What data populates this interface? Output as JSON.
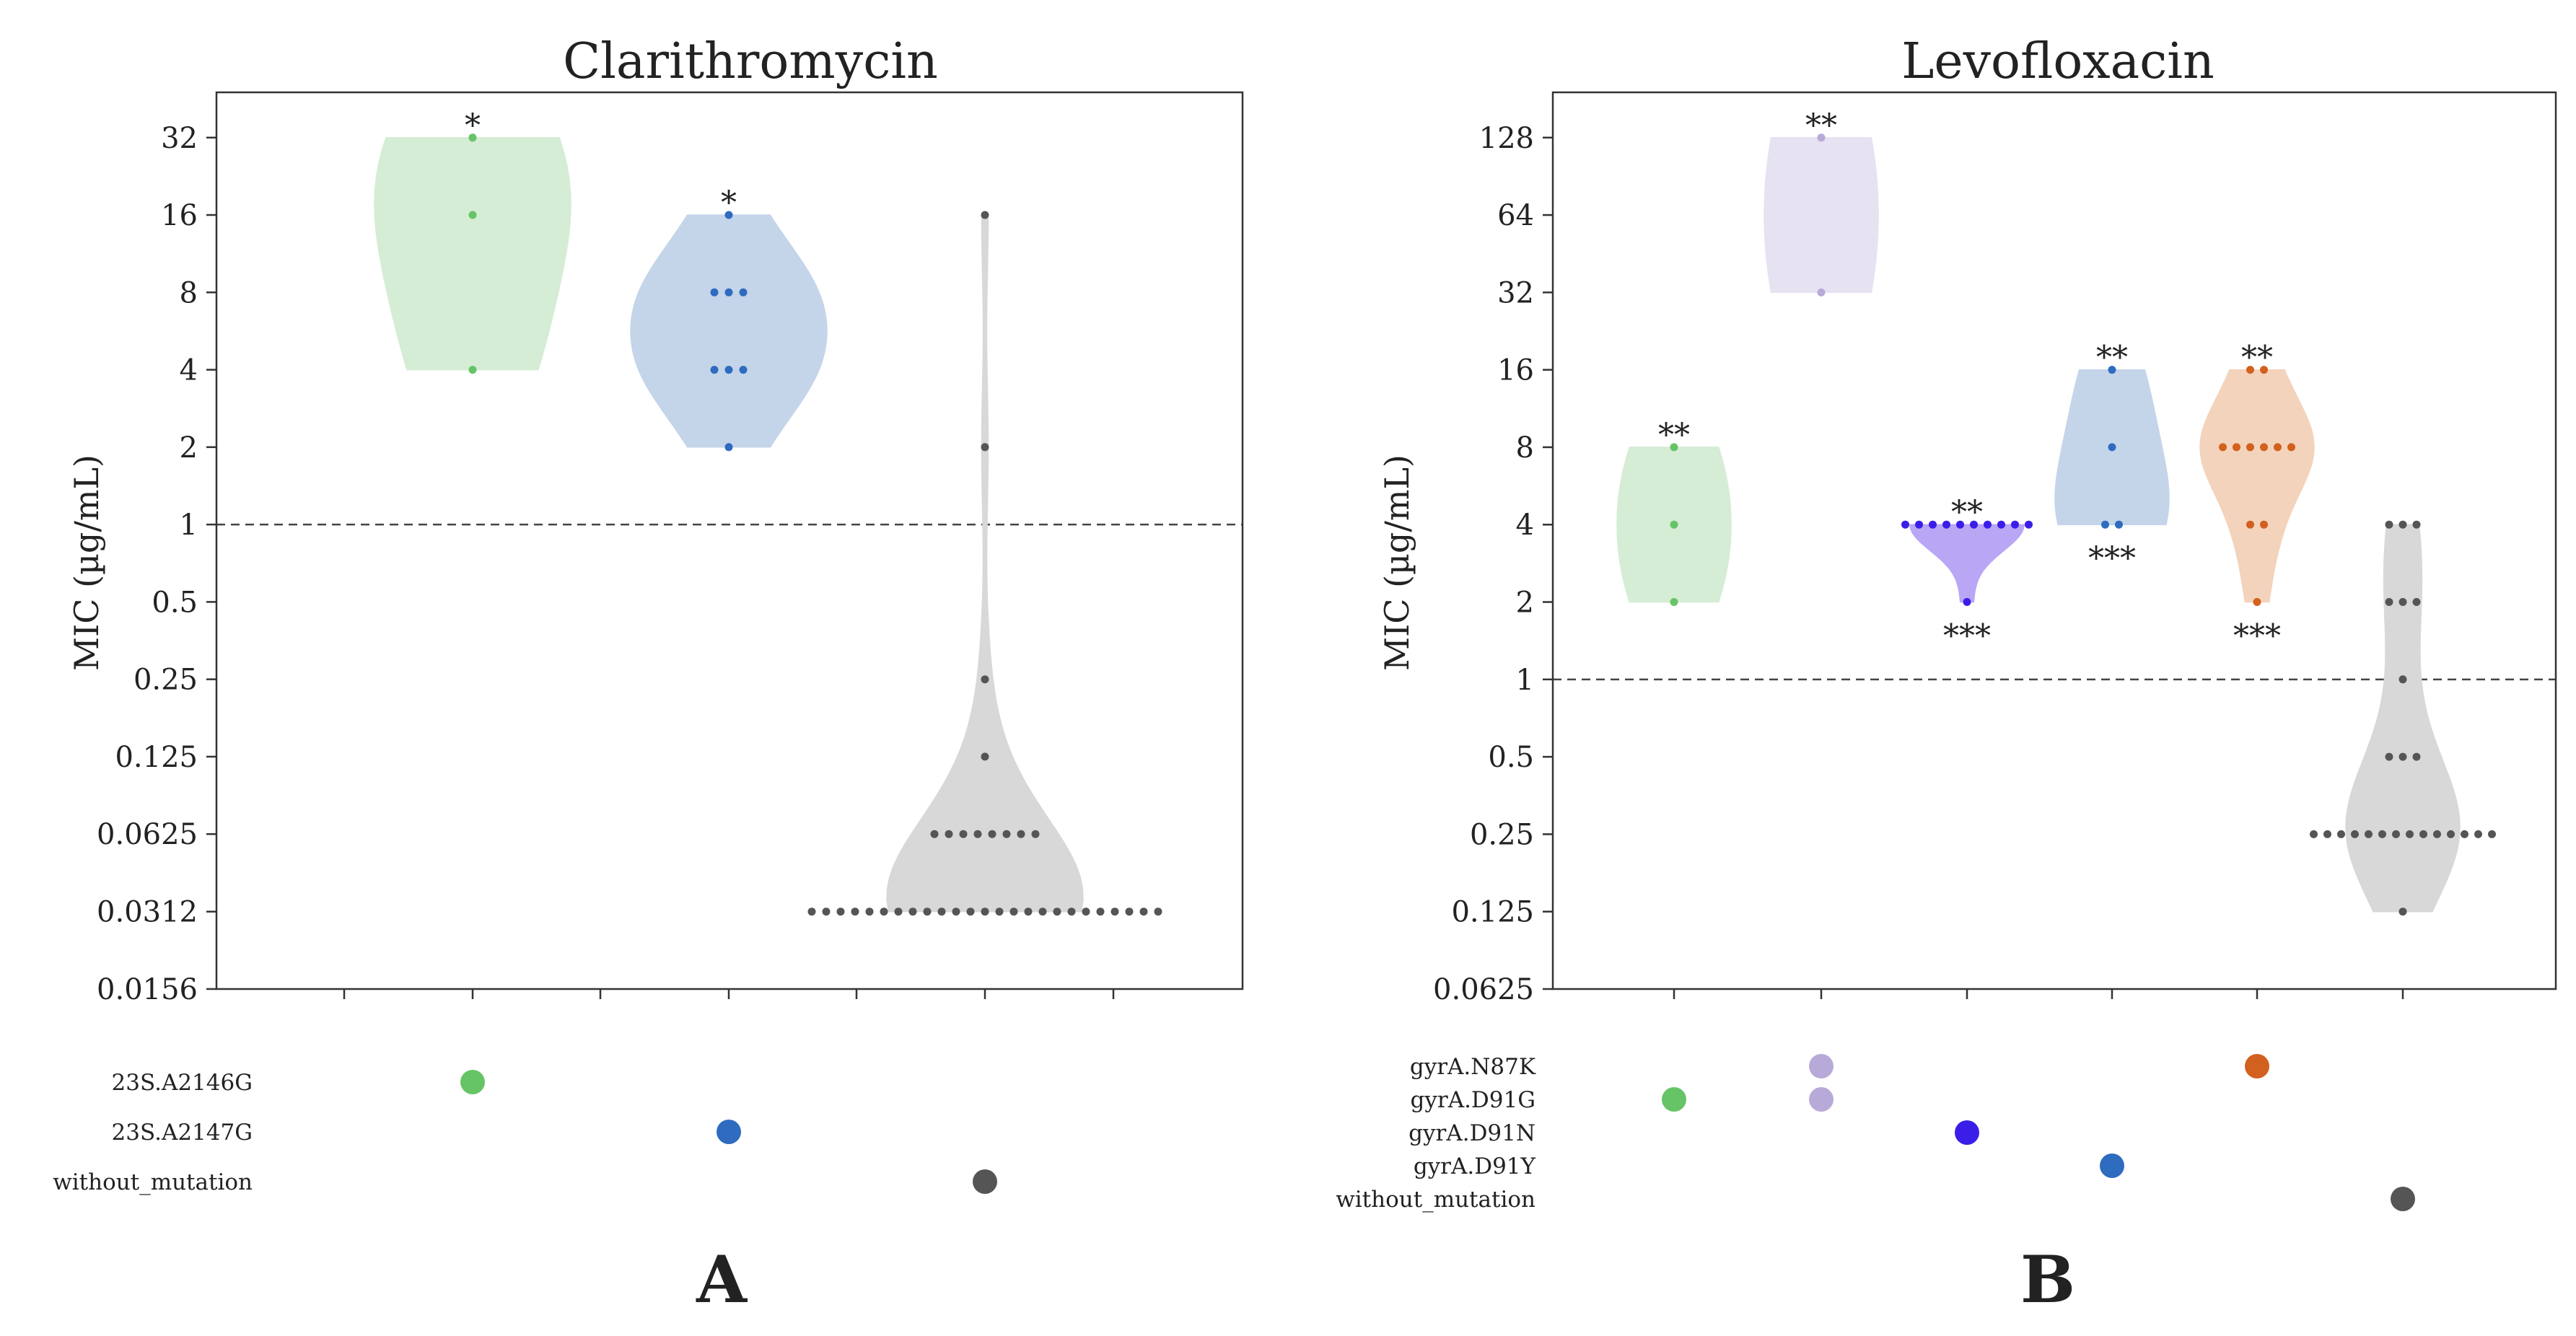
{
  "figure": {
    "panels": [
      {
        "label": "A",
        "title": "Clarithromycin"
      },
      {
        "label": "B",
        "title": "Levofloxacin"
      }
    ]
  },
  "chart_data": [
    {
      "type": "violin",
      "panel": "A",
      "title": "Clarithromycin",
      "ylabel": "MIC (µg/mL)",
      "yscale": "log2",
      "ylim": [
        0.0156,
        48
      ],
      "yticks": [
        0.0156,
        0.0312,
        0.0625,
        0.125,
        0.25,
        0.5,
        1,
        2,
        4,
        8,
        16,
        32
      ],
      "ytick_labels": [
        "0.0156",
        "0.0312",
        "0.0625",
        "0.125",
        "0.25",
        "0.5",
        "1",
        "2",
        "4",
        "8",
        "16",
        "32"
      ],
      "breakpoint": 1,
      "n_categories": 3,
      "mutation_rows": [
        "23S.A2146G",
        "23S.A2147G",
        "without_mutation"
      ],
      "series": [
        {
          "name": "23S.A2146G",
          "color": "#66c466",
          "fill": "#d5ecd5",
          "mutations": [
            "23S.A2146G"
          ],
          "points": [
            4,
            16,
            32
          ],
          "significance": "*",
          "sig_position": "top"
        },
        {
          "name": "23S.A2147G",
          "color": "#2f6bbf",
          "fill": "#c4d5ea",
          "mutations": [
            "23S.A2147G"
          ],
          "points": [
            2,
            4,
            4,
            4,
            8,
            8,
            8,
            16
          ],
          "significance": "*",
          "sig_position": "top"
        },
        {
          "name": "without_mutation",
          "color": "#555555",
          "fill": "#d8d8d8",
          "mutations": [
            "without_mutation"
          ],
          "points": [
            0.0312,
            0.0312,
            0.0312,
            0.0312,
            0.0312,
            0.0312,
            0.0312,
            0.0312,
            0.0312,
            0.0312,
            0.0312,
            0.0312,
            0.0312,
            0.0312,
            0.0312,
            0.0312,
            0.0312,
            0.0312,
            0.0312,
            0.0312,
            0.0312,
            0.0312,
            0.0312,
            0.0312,
            0.0312,
            0.0625,
            0.0625,
            0.0625,
            0.0625,
            0.0625,
            0.0625,
            0.0625,
            0.0625,
            0.125,
            0.25,
            2,
            16
          ],
          "significance": "",
          "sig_position": ""
        }
      ]
    },
    {
      "type": "violin",
      "panel": "B",
      "title": "Levofloxacin",
      "ylabel": "MIC (µg/mL)",
      "yscale": "log2",
      "ylim": [
        0.0625,
        192
      ],
      "yticks": [
        0.0625,
        0.125,
        0.25,
        0.5,
        1,
        2,
        4,
        8,
        16,
        32,
        64,
        128
      ],
      "ytick_labels": [
        "0.0625",
        "0.125",
        "0.25",
        "0.5",
        "1",
        "2",
        "4",
        "8",
        "16",
        "32",
        "64",
        "128"
      ],
      "breakpoint": 1,
      "n_categories": 6,
      "mutation_rows": [
        "gyrA.N87K",
        "gyrA.D91G",
        "gyrA.D91N",
        "gyrA.D91Y",
        "without_mutation"
      ],
      "series": [
        {
          "name": "gyrA.D91G",
          "color": "#66c466",
          "fill": "#d5ecd5",
          "mutations": [
            "gyrA.D91G"
          ],
          "points": [
            2,
            4,
            8
          ],
          "significance": "**",
          "sig_position": "top"
        },
        {
          "name": "gyrA.N87K + gyrA.D91G",
          "color": "#b8aad8",
          "fill": "#e6e2f2",
          "mutations": [
            "gyrA.N87K",
            "gyrA.D91G"
          ],
          "points": [
            32,
            128
          ],
          "significance": "**",
          "sig_position": "top"
        },
        {
          "name": "gyrA.D91N",
          "color": "#3a1ee8",
          "fill": "#b9a6f5",
          "mutations": [
            "gyrA.D91N"
          ],
          "points": [
            2,
            4,
            4,
            4,
            4,
            4,
            4,
            4,
            4,
            4,
            4
          ],
          "significance": "**",
          "sig_position": "top",
          "significance2": "***"
        },
        {
          "name": "gyrA.D91Y",
          "color": "#2f6bbf",
          "fill": "#c4d5ea",
          "mutations": [
            "gyrA.D91Y"
          ],
          "points": [
            4,
            4,
            8,
            16
          ],
          "significance": "**",
          "sig_position": "top",
          "significance2": "***"
        },
        {
          "name": "gyrA.N87K",
          "color": "#d2601e",
          "fill": "#f3d3bb",
          "mutations": [
            "gyrA.N87K"
          ],
          "points": [
            2,
            4,
            4,
            8,
            8,
            8,
            8,
            8,
            8,
            16,
            16
          ],
          "significance": "**",
          "sig_position": "top",
          "significance2": "***"
        },
        {
          "name": "without_mutation",
          "color": "#555555",
          "fill": "#d8d8d8",
          "mutations": [
            "without_mutation"
          ],
          "points": [
            0.125,
            0.25,
            0.25,
            0.25,
            0.25,
            0.25,
            0.25,
            0.25,
            0.25,
            0.25,
            0.25,
            0.25,
            0.25,
            0.25,
            0.25,
            0.5,
            0.5,
            0.5,
            1,
            2,
            2,
            2,
            4,
            4,
            4
          ],
          "significance": "",
          "sig_position": ""
        }
      ]
    }
  ]
}
